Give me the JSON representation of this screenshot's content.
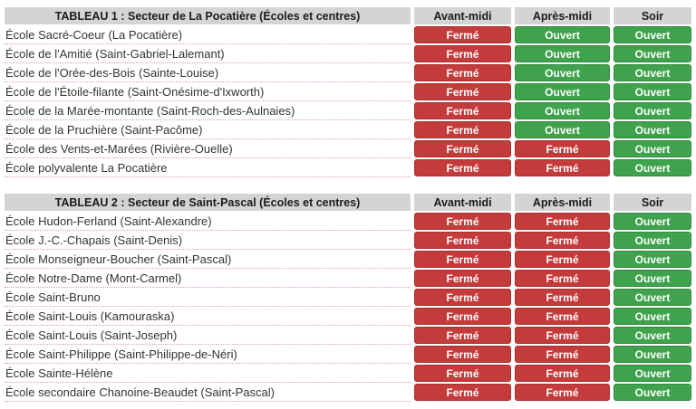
{
  "colors": {
    "header_bg": "#d4d4d4",
    "header_text": "#1b1b1b",
    "closed_bg": "#c43b3b",
    "open_bg": "#3fa24c",
    "badge_text": "#ffffff",
    "name_text": "#333333",
    "row_divider": "#d9a0a0"
  },
  "status_labels": {
    "closed": "Fermé",
    "open": "Ouvert"
  },
  "columns": [
    "Avant-midi",
    "Après-midi",
    "Soir"
  ],
  "tables": [
    {
      "title": "TABLEAU 1 : Secteur de La Pocatière (Écoles et centres)",
      "slug": "la-pocatiere",
      "rows": [
        {
          "name": "École Sacré-Coeur (La Pocatière)",
          "statuses": [
            "closed",
            "open",
            "open"
          ]
        },
        {
          "name": "École de l'Amitié (Saint-Gabriel-Lalemant)",
          "statuses": [
            "closed",
            "open",
            "open"
          ]
        },
        {
          "name": "École de l'Orée-des-Bois (Sainte-Louise)",
          "statuses": [
            "closed",
            "open",
            "open"
          ]
        },
        {
          "name": "École de l'Étoile-filante (Saint-Onésime-d'Ixworth)",
          "statuses": [
            "closed",
            "open",
            "open"
          ]
        },
        {
          "name": "École de la Marée-montante (Saint-Roch-des-Aulnaies)",
          "statuses": [
            "closed",
            "open",
            "open"
          ]
        },
        {
          "name": "École de la Pruchière (Saint-Pacôme)",
          "statuses": [
            "closed",
            "open",
            "open"
          ]
        },
        {
          "name": "École des Vents-et-Marées (Rivière-Ouelle)",
          "statuses": [
            "closed",
            "closed",
            "open"
          ]
        },
        {
          "name": "École polyvalente La Pocatière",
          "statuses": [
            "closed",
            "closed",
            "open"
          ]
        }
      ]
    },
    {
      "title": "TABLEAU 2 : Secteur de Saint-Pascal (Écoles et centres)",
      "slug": "saint-pascal",
      "rows": [
        {
          "name": "École Hudon-Ferland (Saint-Alexandre)",
          "statuses": [
            "closed",
            "closed",
            "open"
          ]
        },
        {
          "name": "École J.-C.-Chapais (Saint-Denis)",
          "statuses": [
            "closed",
            "closed",
            "open"
          ]
        },
        {
          "name": "École Monseigneur-Boucher (Saint-Pascal)",
          "statuses": [
            "closed",
            "closed",
            "open"
          ]
        },
        {
          "name": "École Notre-Dame (Mont-Carmel)",
          "statuses": [
            "closed",
            "closed",
            "open"
          ]
        },
        {
          "name": "École Saint-Bruno",
          "statuses": [
            "closed",
            "closed",
            "open"
          ]
        },
        {
          "name": "École Saint-Louis (Kamouraska)",
          "statuses": [
            "closed",
            "closed",
            "open"
          ]
        },
        {
          "name": "École Saint-Louis (Saint-Joseph)",
          "statuses": [
            "closed",
            "closed",
            "open"
          ]
        },
        {
          "name": "École Saint-Philippe (Saint-Philippe-de-Néri)",
          "statuses": [
            "closed",
            "closed",
            "open"
          ]
        },
        {
          "name": "École Sainte-Hélène",
          "statuses": [
            "closed",
            "closed",
            "open"
          ]
        },
        {
          "name": "École secondaire Chanoine-Beaudet (Saint-Pascal)",
          "statuses": [
            "closed",
            "closed",
            "open"
          ]
        }
      ]
    }
  ]
}
